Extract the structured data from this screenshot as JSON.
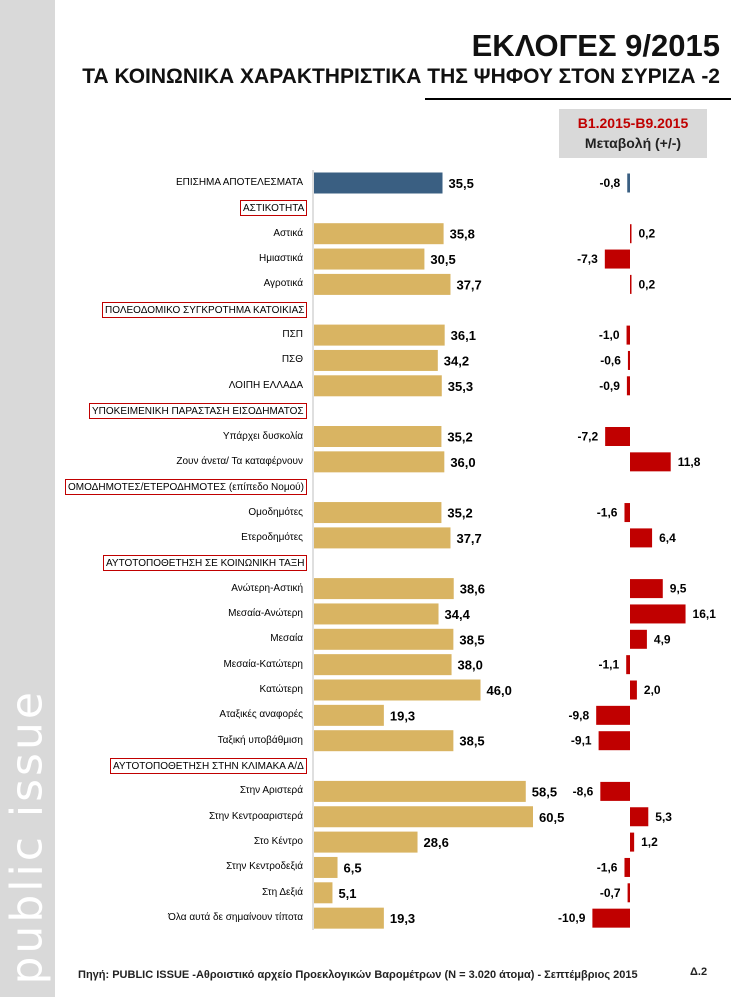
{
  "branding": {
    "logo_text": "public issue"
  },
  "title": {
    "main": "ΕΚΛΟΓΕΣ 9/2015",
    "sub": "ΤΑ ΚΟΙΝΩΝΙΚΑ ΧΑΡΑΚΤΗΡΙΣΤΙΚΑ ΤΗΣ ΨΗΦΟΥ ΣΤΟΝ ΣΥΡΙΖΑ -2"
  },
  "change_header": {
    "period": "Β1.2015-Β9.2015",
    "subtitle": "Μεταβολή (+/-)"
  },
  "footer": {
    "source": "Πηγή:  PUBLIC ISSUE -Αθροιστικό αρχείο Προεκλογικών Βαρομέτρων (Ν = 3.020 άτομα)  - Σεπτέμβριος 2015",
    "page_number": "Δ.2"
  },
  "colors": {
    "official_bar": "#3a5f82",
    "bar": "#d9b462",
    "change_bar": "#c00000",
    "section_border": "#c00000"
  },
  "chart_data": {
    "type": "bar",
    "orientation": "horizontal",
    "title": "ΤΑ ΚΟΙΝΩΝΙΚΑ ΧΑΡΑΚΤΗΡΙΣΤΙΚΑ ΤΗΣ ΨΗΦΟΥ ΣΤΟΝ ΣΥΡΙΖΑ -2",
    "value_range": [
      0,
      70
    ],
    "change_range": [
      -12,
      18
    ],
    "rows": [
      {
        "kind": "bar",
        "label": "ΕΠΙΣΗΜΑ ΑΠΟΤΕΛΕΣΜΑΤΑ",
        "value": 35.5,
        "value_label": "35,5",
        "change": -0.8,
        "change_label": "-0,8",
        "official": true
      },
      {
        "kind": "section",
        "label": "ΑΣΤΙΚΟΤΗΤΑ"
      },
      {
        "kind": "bar",
        "label": "Αστικά",
        "value": 35.8,
        "value_label": "35,8",
        "change": 0.2,
        "change_label": "0,2"
      },
      {
        "kind": "bar",
        "label": "Ημιαστικά",
        "value": 30.5,
        "value_label": "30,5",
        "change": -7.3,
        "change_label": "-7,3"
      },
      {
        "kind": "bar",
        "label": "Αγροτικά",
        "value": 37.7,
        "value_label": "37,7",
        "change": 0.2,
        "change_label": "0,2"
      },
      {
        "kind": "section",
        "label": "ΠΟΛΕΟΔΟΜΙΚΟ ΣΥΓΚΡΟΤΗΜΑ ΚΑΤΟΙΚΙΑΣ"
      },
      {
        "kind": "bar",
        "label": "ΠΣΠ",
        "value": 36.1,
        "value_label": "36,1",
        "change": -1.0,
        "change_label": "-1,0"
      },
      {
        "kind": "bar",
        "label": "ΠΣΘ",
        "value": 34.2,
        "value_label": "34,2",
        "change": -0.6,
        "change_label": "-0,6"
      },
      {
        "kind": "bar",
        "label": "ΛΟΙΠΗ ΕΛΛΑΔΑ",
        "value": 35.3,
        "value_label": "35,3",
        "change": -0.9,
        "change_label": "-0,9"
      },
      {
        "kind": "section",
        "label": "ΥΠΟΚΕΙΜΕΝΙΚΗ ΠΑΡΑΣΤΑΣΗ ΕΙΣΟΔΗΜΑΤΟΣ"
      },
      {
        "kind": "bar",
        "label": "Υπάρχει δυσκολία",
        "value": 35.2,
        "value_label": "35,2",
        "change": -7.2,
        "change_label": "-7,2"
      },
      {
        "kind": "bar",
        "label": "Ζουν άνετα/ Τα καταφέρνουν",
        "value": 36.0,
        "value_label": "36,0",
        "change": 11.8,
        "change_label": "11,8"
      },
      {
        "kind": "section",
        "label": "ΟΜΟΔΗΜΟΤΕΣ/ΕΤΕΡΟΔΗΜΟΤΕΣ  (επίπεδο Νομού)"
      },
      {
        "kind": "bar",
        "label": "Ομοδημότες",
        "value": 35.2,
        "value_label": "35,2",
        "change": -1.6,
        "change_label": "-1,6"
      },
      {
        "kind": "bar",
        "label": "Ετεροδημότες",
        "value": 37.7,
        "value_label": "37,7",
        "change": 6.4,
        "change_label": "6,4"
      },
      {
        "kind": "section",
        "label": "ΑΥΤΟΤΟΠΟΘΕΤΗΣΗ  ΣΕ ΚΟΙΝΩΝΙΚΗ ΤΑΞΗ"
      },
      {
        "kind": "bar",
        "label": "Ανώτερη-Αστική",
        "value": 38.6,
        "value_label": "38,6",
        "change": 9.5,
        "change_label": "9,5"
      },
      {
        "kind": "bar",
        "label": "Μεσαία-Ανώτερη",
        "value": 34.4,
        "value_label": "34,4",
        "change": 16.1,
        "change_label": "16,1"
      },
      {
        "kind": "bar",
        "label": "Μεσαία",
        "value": 38.5,
        "value_label": "38,5",
        "change": 4.9,
        "change_label": "4,9"
      },
      {
        "kind": "bar",
        "label": "Μεσαία-Κατώτερη",
        "value": 38.0,
        "value_label": "38,0",
        "change": -1.1,
        "change_label": "-1,1"
      },
      {
        "kind": "bar",
        "label": "Κατώτερη",
        "value": 46.0,
        "value_label": "46,0",
        "change": 2.0,
        "change_label": "2,0"
      },
      {
        "kind": "bar",
        "label": "Αταξικές αναφορές",
        "value": 19.3,
        "value_label": "19,3",
        "change": -9.8,
        "change_label": "-9,8"
      },
      {
        "kind": "bar",
        "label": "Ταξική υποβάθμιση",
        "value": 38.5,
        "value_label": "38,5",
        "change": -9.1,
        "change_label": "-9,1"
      },
      {
        "kind": "section",
        "label": "ΑΥΤΟΤΟΠΟΘΕΤΗΣΗ ΣΤΗΝ ΚΛΙΜΑΚΑ Α/Δ"
      },
      {
        "kind": "bar",
        "label": "Στην Αριστερά",
        "value": 58.5,
        "value_label": "58,5",
        "change": -8.6,
        "change_label": "-8,6"
      },
      {
        "kind": "bar",
        "label": "Στην Κεντροαριστερά",
        "value": 60.5,
        "value_label": "60,5",
        "change": 5.3,
        "change_label": "5,3"
      },
      {
        "kind": "bar",
        "label": "Στο Κέντρο",
        "value": 28.6,
        "value_label": "28,6",
        "change": 1.2,
        "change_label": "1,2"
      },
      {
        "kind": "bar",
        "label": "Στην Κεντροδεξιά",
        "value": 6.5,
        "value_label": "6,5",
        "change": -1.6,
        "change_label": "-1,6"
      },
      {
        "kind": "bar",
        "label": "Στη Δεξιά",
        "value": 5.1,
        "value_label": "5,1",
        "change": -0.7,
        "change_label": "-0,7"
      },
      {
        "kind": "bar",
        "label": "Όλα αυτά δε σημαίνουν τίποτα",
        "value": 19.3,
        "value_label": "19,3",
        "change": -10.9,
        "change_label": "-10,9"
      }
    ]
  }
}
